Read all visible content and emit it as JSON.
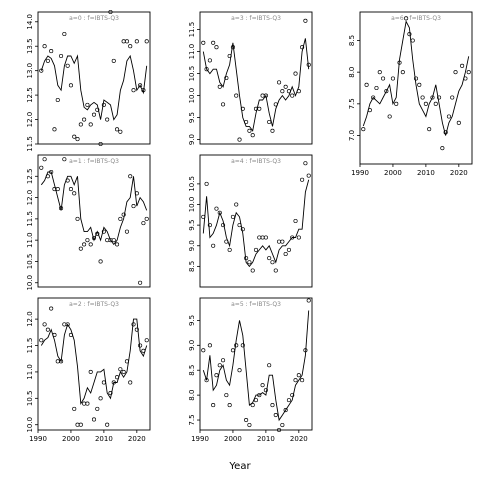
{
  "xlabel": "Year",
  "chart_data": [
    {
      "type": "line",
      "title": "a=0 : f=IBTS-Q3",
      "xlim": [
        1990,
        2024
      ],
      "ylim": [
        11.5,
        14.2
      ],
      "yticks": [
        11.5,
        12.0,
        12.5,
        13.0,
        13.5,
        14.0
      ],
      "xticks": [],
      "x": [
        1991,
        1992,
        1993,
        1994,
        1995,
        1996,
        1997,
        1998,
        1999,
        2000,
        2001,
        2002,
        2003,
        2004,
        2005,
        2006,
        2007,
        2008,
        2009,
        2010,
        2011,
        2012,
        2013,
        2014,
        2015,
        2016,
        2017,
        2018,
        2019,
        2020,
        2021,
        2022,
        2023
      ],
      "fitted": [
        13.0,
        13.2,
        13.3,
        13.25,
        13.1,
        12.7,
        12.6,
        13.1,
        13.3,
        13.3,
        13.15,
        13.3,
        12.6,
        12.25,
        12.2,
        12.3,
        12.35,
        12.3,
        12.0,
        12.4,
        12.35,
        12.3,
        12.0,
        12.1,
        12.6,
        12.8,
        13.2,
        13.3,
        13.0,
        12.6,
        12.7,
        12.55,
        13.1
      ],
      "observed": [
        13.0,
        13.5,
        13.2,
        13.4,
        11.8,
        12.4,
        13.3,
        13.75,
        13.1,
        12.7,
        11.65,
        11.6,
        11.9,
        12.0,
        12.3,
        11.9,
        12.1,
        12.2,
        11.5,
        12.3,
        12.0,
        14.2,
        13.2,
        11.8,
        11.75,
        13.6,
        13.6,
        13.5,
        12.6,
        13.6,
        12.7,
        12.6,
        13.6
      ]
    },
    {
      "type": "line",
      "title": "a=1 : f=IBTS-Q3",
      "xlim": [
        1990,
        2024
      ],
      "ylim": [
        9.9,
        13.0
      ],
      "yticks": [
        10.0,
        10.5,
        11.0,
        11.5,
        12.0,
        12.5
      ],
      "xticks": [],
      "x": [
        1991,
        1992,
        1993,
        1994,
        1995,
        1996,
        1997,
        1998,
        1999,
        2000,
        2001,
        2002,
        2003,
        2004,
        2005,
        2006,
        2007,
        2008,
        2009,
        2010,
        2011,
        2012,
        2013,
        2014,
        2015,
        2016,
        2017,
        2018,
        2019,
        2020,
        2021,
        2022,
        2023
      ],
      "fitted": [
        12.3,
        12.4,
        12.6,
        12.6,
        12.3,
        12.0,
        11.7,
        12.3,
        12.5,
        12.5,
        12.3,
        12.5,
        11.5,
        11.2,
        11.2,
        11.3,
        11.0,
        11.2,
        11.0,
        11.3,
        11.2,
        11.0,
        10.9,
        11.0,
        11.3,
        11.5,
        11.9,
        12.0,
        12.5,
        11.8,
        12.0,
        11.9,
        11.7
      ],
      "observed": [
        12.7,
        12.9,
        12.5,
        12.6,
        12.2,
        12.2,
        11.75,
        12.9,
        12.4,
        12.2,
        12.1,
        11.5,
        10.8,
        10.9,
        11.0,
        10.9,
        11.05,
        11.15,
        10.5,
        11.2,
        11.0,
        11.0,
        11.0,
        10.9,
        11.5,
        11.6,
        11.2,
        12.5,
        11.8,
        12.1,
        10.0,
        11.4,
        11.5
      ]
    },
    {
      "type": "line",
      "title": "a=2 : f=IBTS-Q3",
      "xlim": [
        1990,
        2024
      ],
      "ylim": [
        9.9,
        12.4
      ],
      "yticks": [
        10.0,
        10.5,
        11.0,
        11.5,
        12.0
      ],
      "xticks": [
        1990,
        2000,
        2010,
        2020
      ],
      "x": [
        1991,
        1992,
        1993,
        1994,
        1995,
        1996,
        1997,
        1998,
        1999,
        2000,
        2001,
        2002,
        2003,
        2004,
        2005,
        2006,
        2007,
        2008,
        2009,
        2010,
        2011,
        2012,
        2013,
        2014,
        2015,
        2016,
        2017,
        2018,
        2019,
        2020,
        2021,
        2022,
        2023
      ],
      "fitted": [
        11.5,
        11.6,
        11.65,
        11.8,
        11.6,
        11.3,
        11.2,
        11.7,
        11.9,
        11.8,
        11.6,
        11.1,
        10.4,
        10.5,
        10.7,
        10.6,
        10.8,
        11.0,
        11.0,
        11.05,
        10.6,
        10.5,
        10.8,
        10.8,
        11.0,
        10.9,
        11.0,
        11.4,
        12.0,
        12.0,
        11.4,
        11.3,
        11.5
      ],
      "observed": [
        11.6,
        11.9,
        11.8,
        12.2,
        11.7,
        11.2,
        11.2,
        11.9,
        11.9,
        11.7,
        10.3,
        10.0,
        10.0,
        10.4,
        10.4,
        11.0,
        10.1,
        10.3,
        10.5,
        10.8,
        10.0,
        10.6,
        10.8,
        10.9,
        11.05,
        11.0,
        11.2,
        10.8,
        11.9,
        11.8,
        11.5,
        11.4,
        11.6
      ]
    },
    {
      "type": "line",
      "title": "a=3 : f=IBTS-Q3",
      "xlim": [
        1990,
        2024
      ],
      "ylim": [
        8.9,
        11.9
      ],
      "yticks": [
        9.0,
        9.5,
        10.0,
        10.5,
        11.0,
        11.5
      ],
      "xticks": [],
      "x": [
        1991,
        1992,
        1993,
        1994,
        1995,
        1996,
        1997,
        1998,
        1999,
        2000,
        2001,
        2002,
        2003,
        2004,
        2005,
        2006,
        2007,
        2008,
        2009,
        2010,
        2011,
        2012,
        2013,
        2014,
        2015,
        2016,
        2017,
        2018,
        2019,
        2020,
        2021,
        2022,
        2023
      ],
      "fitted": [
        11.0,
        10.6,
        10.5,
        10.6,
        10.6,
        10.3,
        10.2,
        10.5,
        10.7,
        11.2,
        10.6,
        10.0,
        9.5,
        9.3,
        9.3,
        9.2,
        9.6,
        9.9,
        9.9,
        10.0,
        9.6,
        9.3,
        9.7,
        9.9,
        10.0,
        9.9,
        10.0,
        10.2,
        10.0,
        10.2,
        11.0,
        11.3,
        10.6
      ],
      "observed": [
        11.2,
        10.6,
        10.8,
        11.2,
        11.1,
        10.2,
        9.8,
        10.4,
        10.9,
        11.1,
        10.0,
        9.0,
        9.7,
        9.4,
        9.2,
        9.1,
        9.7,
        9.7,
        10.0,
        10.0,
        9.4,
        9.2,
        9.8,
        10.3,
        10.1,
        10.2,
        10.1,
        10.0,
        10.5,
        10.1,
        11.1,
        11.7,
        10.7
      ]
    },
    {
      "type": "line",
      "title": "a=4 : f=IBTS-Q3",
      "xlim": [
        1990,
        2024
      ],
      "ylim": [
        8.0,
        11.2
      ],
      "yticks": [
        8.5,
        9.0,
        9.5,
        10.0,
        10.5
      ],
      "xticks": [],
      "x": [
        1991,
        1992,
        1993,
        1994,
        1995,
        1996,
        1997,
        1998,
        1999,
        2000,
        2001,
        2002,
        2003,
        2004,
        2005,
        2006,
        2007,
        2008,
        2009,
        2010,
        2011,
        2012,
        2013,
        2014,
        2015,
        2016,
        2017,
        2018,
        2019,
        2020,
        2021,
        2022,
        2023
      ],
      "fitted": [
        9.3,
        10.2,
        9.2,
        9.3,
        9.5,
        9.8,
        9.6,
        9.2,
        9.0,
        9.5,
        9.8,
        9.7,
        9.3,
        8.6,
        8.5,
        8.6,
        8.8,
        8.9,
        9.0,
        8.9,
        9.0,
        8.8,
        8.6,
        8.9,
        9.0,
        9.0,
        9.1,
        9.2,
        9.2,
        9.4,
        9.4,
        10.3,
        10.6
      ],
      "observed": [
        9.7,
        10.5,
        9.5,
        9.0,
        9.9,
        9.8,
        9.5,
        9.1,
        8.9,
        9.7,
        10.0,
        9.5,
        9.4,
        8.7,
        8.6,
        8.4,
        8.9,
        9.2,
        9.2,
        9.2,
        8.7,
        8.6,
        8.4,
        9.1,
        9.1,
        8.8,
        8.9,
        9.2,
        9.6,
        9.2,
        10.6,
        11.0,
        10.7
      ]
    },
    {
      "type": "line",
      "title": "a=5 : f=IBTS-Q3",
      "xlim": [
        1990,
        2024
      ],
      "ylim": [
        7.3,
        9.95
      ],
      "yticks": [
        7.5,
        8.0,
        8.5,
        9.0,
        9.5
      ],
      "xticks": [
        1990,
        2000,
        2010,
        2020
      ],
      "x": [
        1991,
        1992,
        1993,
        1994,
        1995,
        1996,
        1997,
        1998,
        1999,
        2000,
        2001,
        2002,
        2003,
        2004,
        2005,
        2006,
        2007,
        2008,
        2009,
        2010,
        2011,
        2012,
        2013,
        2014,
        2015,
        2016,
        2017,
        2018,
        2019,
        2020,
        2021,
        2022,
        2023
      ],
      "fitted": [
        8.5,
        8.3,
        8.8,
        8.1,
        8.2,
        8.5,
        8.6,
        8.3,
        8.2,
        8.6,
        9.1,
        9.5,
        9.2,
        8.5,
        7.8,
        7.85,
        8.0,
        8.0,
        8.05,
        8.0,
        8.4,
        8.4,
        7.9,
        7.5,
        7.6,
        7.7,
        7.8,
        7.9,
        8.2,
        8.3,
        8.4,
        8.8,
        9.7
      ],
      "observed": [
        8.9,
        8.3,
        9.0,
        7.8,
        8.4,
        8.6,
        8.7,
        8.0,
        7.8,
        8.9,
        9.0,
        8.5,
        9.0,
        7.5,
        7.4,
        7.8,
        7.9,
        8.0,
        8.2,
        8.1,
        8.6,
        7.8,
        7.6,
        7.3,
        7.4,
        7.7,
        7.9,
        8.0,
        8.3,
        8.4,
        8.3,
        8.9,
        9.9
      ]
    },
    {
      "type": "line",
      "title": "a=6 : f=IBTS-Q3",
      "xlim": [
        1990,
        2024
      ],
      "ylim": [
        6.55,
        8.95
      ],
      "yticks": [
        7.0,
        7.5,
        8.0,
        8.5
      ],
      "xticks": [
        1990,
        2000,
        2010,
        2020
      ],
      "x": [
        1991,
        1992,
        1993,
        1994,
        1995,
        1996,
        1997,
        1998,
        1999,
        2000,
        2001,
        2002,
        2003,
        2004,
        2005,
        2006,
        2007,
        2008,
        2009,
        2010,
        2011,
        2012,
        2013,
        2014,
        2015,
        2016,
        2017,
        2018,
        2019,
        2020,
        2021,
        2022,
        2023
      ],
      "fitted": [
        7.15,
        7.3,
        7.5,
        7.6,
        7.55,
        7.5,
        7.6,
        7.7,
        7.8,
        7.5,
        7.6,
        8.2,
        8.5,
        8.8,
        8.7,
        8.2,
        7.8,
        7.5,
        7.4,
        7.3,
        7.5,
        7.6,
        7.8,
        7.5,
        7.2,
        7.0,
        7.2,
        7.3,
        7.5,
        7.7,
        7.8,
        8.0,
        8.25
      ],
      "observed": [
        7.1,
        7.8,
        7.4,
        7.6,
        7.75,
        8.0,
        7.9,
        7.7,
        7.3,
        7.9,
        7.5,
        8.15,
        8.0,
        8.85,
        8.6,
        8.5,
        7.9,
        7.8,
        7.6,
        7.5,
        7.1,
        7.6,
        7.5,
        7.6,
        6.8,
        7.05,
        7.3,
        7.6,
        8.0,
        7.2,
        8.1,
        7.9,
        8.0
      ]
    }
  ]
}
